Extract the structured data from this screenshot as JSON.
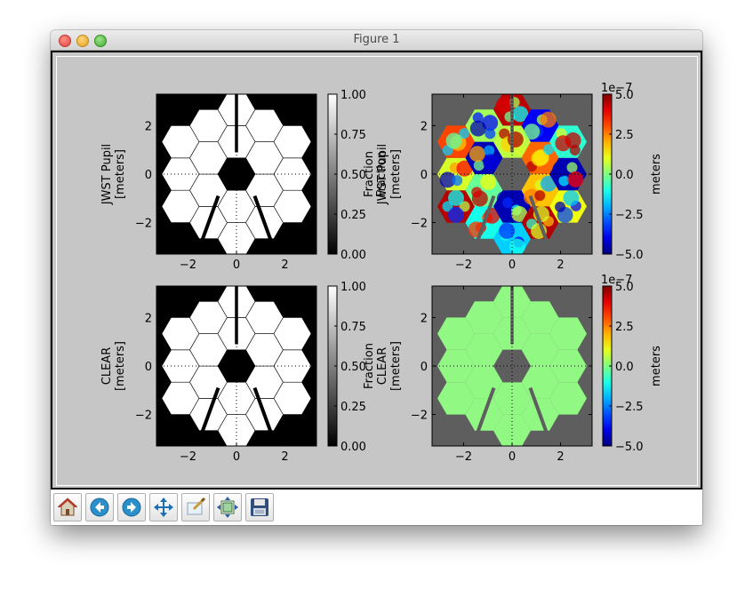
{
  "window": {
    "title": "Figure 1"
  },
  "toolbar": {
    "buttons": [
      {
        "name": "home-button",
        "icon": "home-icon"
      },
      {
        "name": "back-button",
        "icon": "arrow-left-icon"
      },
      {
        "name": "forward-button",
        "icon": "arrow-right-icon"
      },
      {
        "name": "pan-button",
        "icon": "move-arrows-icon"
      },
      {
        "name": "zoom-button",
        "icon": "zoom-rect-icon"
      },
      {
        "name": "subplots-button",
        "icon": "subplots-config-icon"
      },
      {
        "name": "save-button",
        "icon": "floppy-disk-icon"
      }
    ]
  },
  "chart_data": [
    {
      "type": "heatmap",
      "ylabel": [
        "JWST Pupil",
        "[meters]"
      ],
      "xlim": [
        -3.3,
        3.3
      ],
      "ylim": [
        -3.3,
        3.3
      ],
      "xticks": [
        "−2",
        "0",
        "2"
      ],
      "yticks": [
        "2",
        "0",
        "−2"
      ],
      "colormap": "gray",
      "colorbar": {
        "label": "Fraction",
        "ticks": [
          "1.00",
          "0.75",
          "0.50",
          "0.25",
          "0.00"
        ],
        "range": [
          0,
          1
        ],
        "offset": ""
      }
    },
    {
      "type": "heatmap",
      "ylabel": [
        "Fraction",
        "JWST Pupil",
        "[meters]"
      ],
      "xlim": [
        -3.3,
        3.3
      ],
      "ylim": [
        -3.3,
        3.3
      ],
      "xticks": [
        "−2",
        "0",
        "2"
      ],
      "yticks": [
        "2",
        "0",
        "−2"
      ],
      "colormap": "jet",
      "colorbar": {
        "label": "meters",
        "ticks": [
          "5.0",
          "2.5",
          "0.0",
          "−2.5",
          "−5.0"
        ],
        "range": [
          -5e-07,
          5e-07
        ],
        "offset": "1e−7"
      }
    },
    {
      "type": "heatmap",
      "ylabel": [
        "CLEAR",
        "[meters]"
      ],
      "xlim": [
        -3.3,
        3.3
      ],
      "ylim": [
        -3.3,
        3.3
      ],
      "xticks": [
        "−2",
        "0",
        "2"
      ],
      "yticks": [
        "2",
        "0",
        "−2"
      ],
      "colormap": "gray",
      "colorbar": {
        "label": "",
        "ticks": [
          "1.00",
          "0.75",
          "0.50",
          "0.25",
          "0.00"
        ],
        "range": [
          0,
          1
        ],
        "offset": ""
      }
    },
    {
      "type": "heatmap",
      "ylabel": [
        "Fraction",
        "CLEAR",
        "[meters]"
      ],
      "xlim": [
        -3.3,
        3.3
      ],
      "ylim": [
        -3.3,
        3.3
      ],
      "xticks": [
        "−2",
        "0",
        "2"
      ],
      "yticks": [
        "2",
        "0",
        "−2"
      ],
      "colormap": "jet",
      "colorbar": {
        "label": "meters",
        "ticks": [
          "5.0",
          "2.5",
          "0.0",
          "−2.5",
          "−5.0"
        ],
        "range": [
          -5e-07,
          5e-07
        ],
        "offset": "1e−7"
      }
    }
  ],
  "colors": {
    "pupil_fill": "#ffffff",
    "pupil_background": "#000000",
    "opd_background": "#5e5e5e",
    "clear_opd_fill": "#90f883"
  }
}
